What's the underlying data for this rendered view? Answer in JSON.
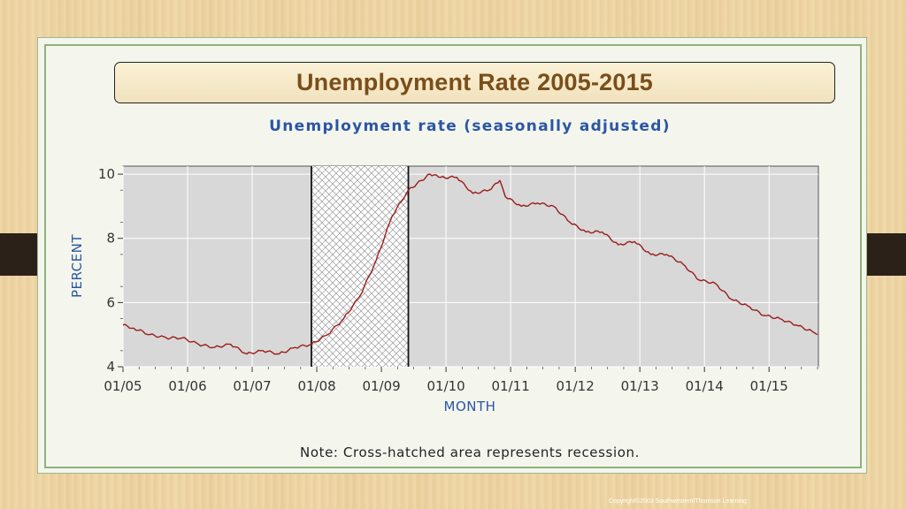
{
  "slide": {
    "title": "Unemployment Rate 2005-2015",
    "footer": "Copyright©2003  Southwestern/Thomson Learning"
  },
  "colors": {
    "line": "#9b1c1c",
    "plot_bg": "#d8d8d8",
    "axis_label": "#2b56a3",
    "title_text": "#7a4e1a"
  },
  "chart_data": {
    "type": "line",
    "title": "Unemployment rate (seasonally adjusted)",
    "xlabel": "MONTH",
    "ylabel": "PERCENT",
    "ylim": [
      4,
      10.25
    ],
    "yticks": [
      4,
      6,
      8,
      10
    ],
    "x_range": [
      "2005-01",
      "2015-10"
    ],
    "x_tick_labels": [
      "01/05",
      "01/06",
      "01/07",
      "01/08",
      "01/09",
      "01/10",
      "01/11",
      "01/12",
      "01/13",
      "01/14",
      "01/15"
    ],
    "grid": true,
    "recession": {
      "start": "2007-12",
      "end": "2009-06"
    },
    "note": "Note: Cross-hatched area represents recession.",
    "series": [
      {
        "x": [
          "2005-01",
          "2005-03",
          "2005-06",
          "2005-09",
          "2005-12",
          "2006-03",
          "2006-06",
          "2006-09",
          "2006-12",
          "2007-03",
          "2007-06",
          "2007-09",
          "2007-12",
          "2008-03",
          "2008-06",
          "2008-09",
          "2008-12",
          "2009-03",
          "2009-06",
          "2009-10",
          "2009-12",
          "2010-03",
          "2010-06",
          "2010-09",
          "2010-11",
          "2010-12",
          "2011-03",
          "2011-06",
          "2011-09",
          "2011-12",
          "2012-03",
          "2012-06",
          "2012-09",
          "2012-12",
          "2013-03",
          "2013-06",
          "2013-09",
          "2013-12",
          "2014-03",
          "2014-06",
          "2014-09",
          "2014-12",
          "2015-03",
          "2015-06",
          "2015-09",
          "2015-10"
        ],
        "y": [
          5.3,
          5.2,
          5.0,
          4.9,
          4.9,
          4.7,
          4.6,
          4.7,
          4.4,
          4.5,
          4.4,
          4.6,
          4.7,
          5.0,
          5.5,
          6.2,
          7.3,
          8.7,
          9.5,
          10.0,
          9.9,
          9.9,
          9.4,
          9.5,
          9.8,
          9.3,
          9.0,
          9.1,
          9.0,
          8.5,
          8.2,
          8.2,
          7.8,
          7.9,
          7.5,
          7.5,
          7.2,
          6.7,
          6.6,
          6.1,
          5.9,
          5.6,
          5.5,
          5.3,
          5.1,
          5.0
        ]
      }
    ]
  }
}
